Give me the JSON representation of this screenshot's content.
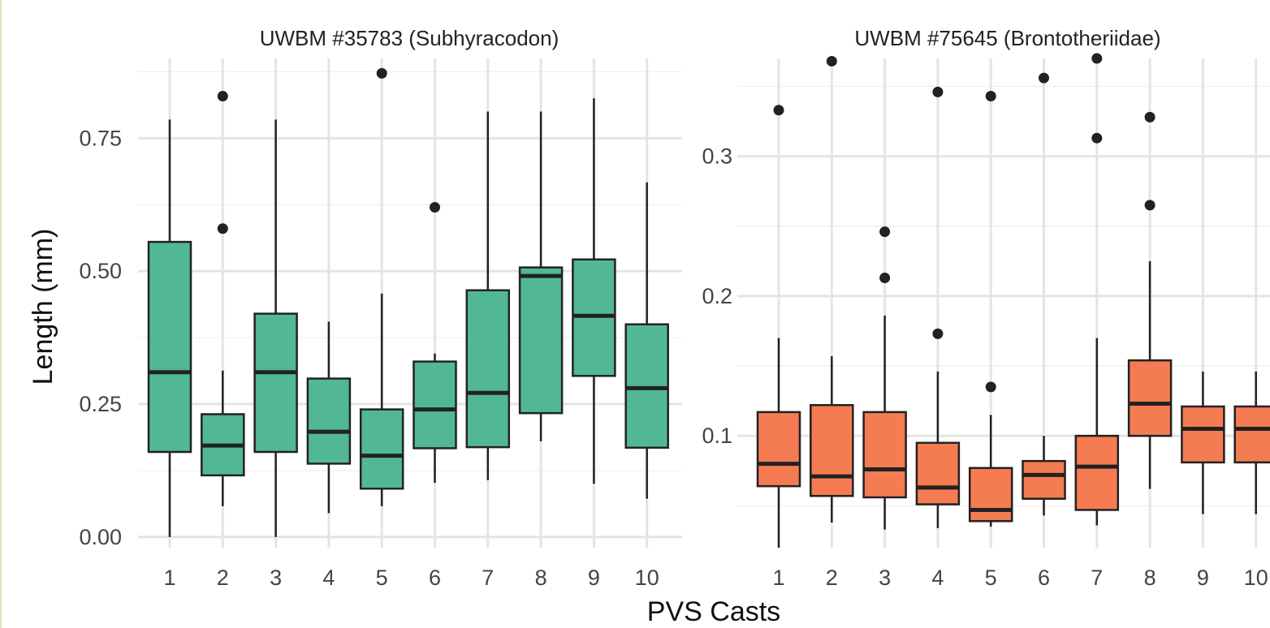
{
  "chart_data": [
    {
      "type": "box",
      "title": "UWBM #35783 (Subhyracodon)",
      "fill_color": "#52b893",
      "categories": [
        "1",
        "2",
        "3",
        "4",
        "5",
        "6",
        "7",
        "8",
        "9",
        "10"
      ],
      "ylim": [
        -0.02,
        0.9
      ],
      "yticks": [
        0.0,
        0.25,
        0.5,
        0.75
      ],
      "ytick_labels": [
        "0.00",
        "0.25",
        "0.50",
        "0.75"
      ],
      "grid": true,
      "boxes": [
        {
          "low": 0.0,
          "q1": 0.16,
          "median": 0.31,
          "q3": 0.555,
          "high": 0.785,
          "outliers": []
        },
        {
          "low": 0.058,
          "q1": 0.116,
          "median": 0.172,
          "q3": 0.231,
          "high": 0.313,
          "outliers": [
            0.58,
            0.829
          ]
        },
        {
          "low": 0.0,
          "q1": 0.16,
          "median": 0.31,
          "q3": 0.42,
          "high": 0.785,
          "outliers": []
        },
        {
          "low": 0.045,
          "q1": 0.138,
          "median": 0.198,
          "q3": 0.298,
          "high": 0.405,
          "outliers": []
        },
        {
          "low": 0.058,
          "q1": 0.091,
          "median": 0.153,
          "q3": 0.24,
          "high": 0.458,
          "outliers": [
            0.872
          ]
        },
        {
          "low": 0.102,
          "q1": 0.167,
          "median": 0.24,
          "q3": 0.33,
          "high": 0.345,
          "outliers": [
            0.62
          ]
        },
        {
          "low": 0.107,
          "q1": 0.169,
          "median": 0.271,
          "q3": 0.464,
          "high": 0.8,
          "outliers": []
        },
        {
          "low": 0.18,
          "q1": 0.233,
          "median": 0.491,
          "q3": 0.507,
          "high": 0.8,
          "outliers": []
        },
        {
          "low": 0.1,
          "q1": 0.303,
          "median": 0.416,
          "q3": 0.522,
          "high": 0.825,
          "outliers": []
        },
        {
          "low": 0.072,
          "q1": 0.168,
          "median": 0.28,
          "q3": 0.4,
          "high": 0.667,
          "outliers": []
        }
      ]
    },
    {
      "type": "box",
      "title": "UWBM #75645 (Brontotheriidae)",
      "fill_color": "#f57b52",
      "categories": [
        "1",
        "2",
        "3",
        "4",
        "5",
        "6",
        "7",
        "8",
        "9",
        "10"
      ],
      "ylim": [
        0.02,
        0.37
      ],
      "yticks": [
        0.1,
        0.2,
        0.3
      ],
      "ytick_labels": [
        "0.1",
        "0.2",
        "0.3"
      ],
      "grid": true,
      "boxes": [
        {
          "low": 0.02,
          "q1": 0.064,
          "median": 0.08,
          "q3": 0.117,
          "high": 0.17,
          "outliers": [
            0.333
          ]
        },
        {
          "low": 0.038,
          "q1": 0.057,
          "median": 0.071,
          "q3": 0.122,
          "high": 0.157,
          "outliers": [
            0.368
          ]
        },
        {
          "low": 0.033,
          "q1": 0.056,
          "median": 0.076,
          "q3": 0.117,
          "high": 0.186,
          "outliers": [
            0.213,
            0.246
          ]
        },
        {
          "low": 0.034,
          "q1": 0.051,
          "median": 0.063,
          "q3": 0.095,
          "high": 0.146,
          "outliers": [
            0.173,
            0.346
          ]
        },
        {
          "low": 0.035,
          "q1": 0.039,
          "median": 0.047,
          "q3": 0.077,
          "high": 0.115,
          "outliers": [
            0.135,
            0.343
          ]
        },
        {
          "low": 0.043,
          "q1": 0.055,
          "median": 0.072,
          "q3": 0.082,
          "high": 0.1,
          "outliers": [
            0.356
          ]
        },
        {
          "low": 0.036,
          "q1": 0.047,
          "median": 0.078,
          "q3": 0.1,
          "high": 0.17,
          "outliers": [
            0.313,
            0.37
          ]
        },
        {
          "low": 0.062,
          "q1": 0.1,
          "median": 0.123,
          "q3": 0.154,
          "high": 0.225,
          "outliers": [
            0.265,
            0.328
          ]
        },
        {
          "low": 0.044,
          "q1": 0.081,
          "median": 0.105,
          "q3": 0.121,
          "high": 0.146,
          "outliers": []
        },
        {
          "low": 0.044,
          "q1": 0.081,
          "median": 0.105,
          "q3": 0.121,
          "high": 0.146,
          "outliers": []
        }
      ]
    }
  ],
  "axes": {
    "xlabel": "PVS Casts",
    "ylabel": "Length (mm)"
  }
}
